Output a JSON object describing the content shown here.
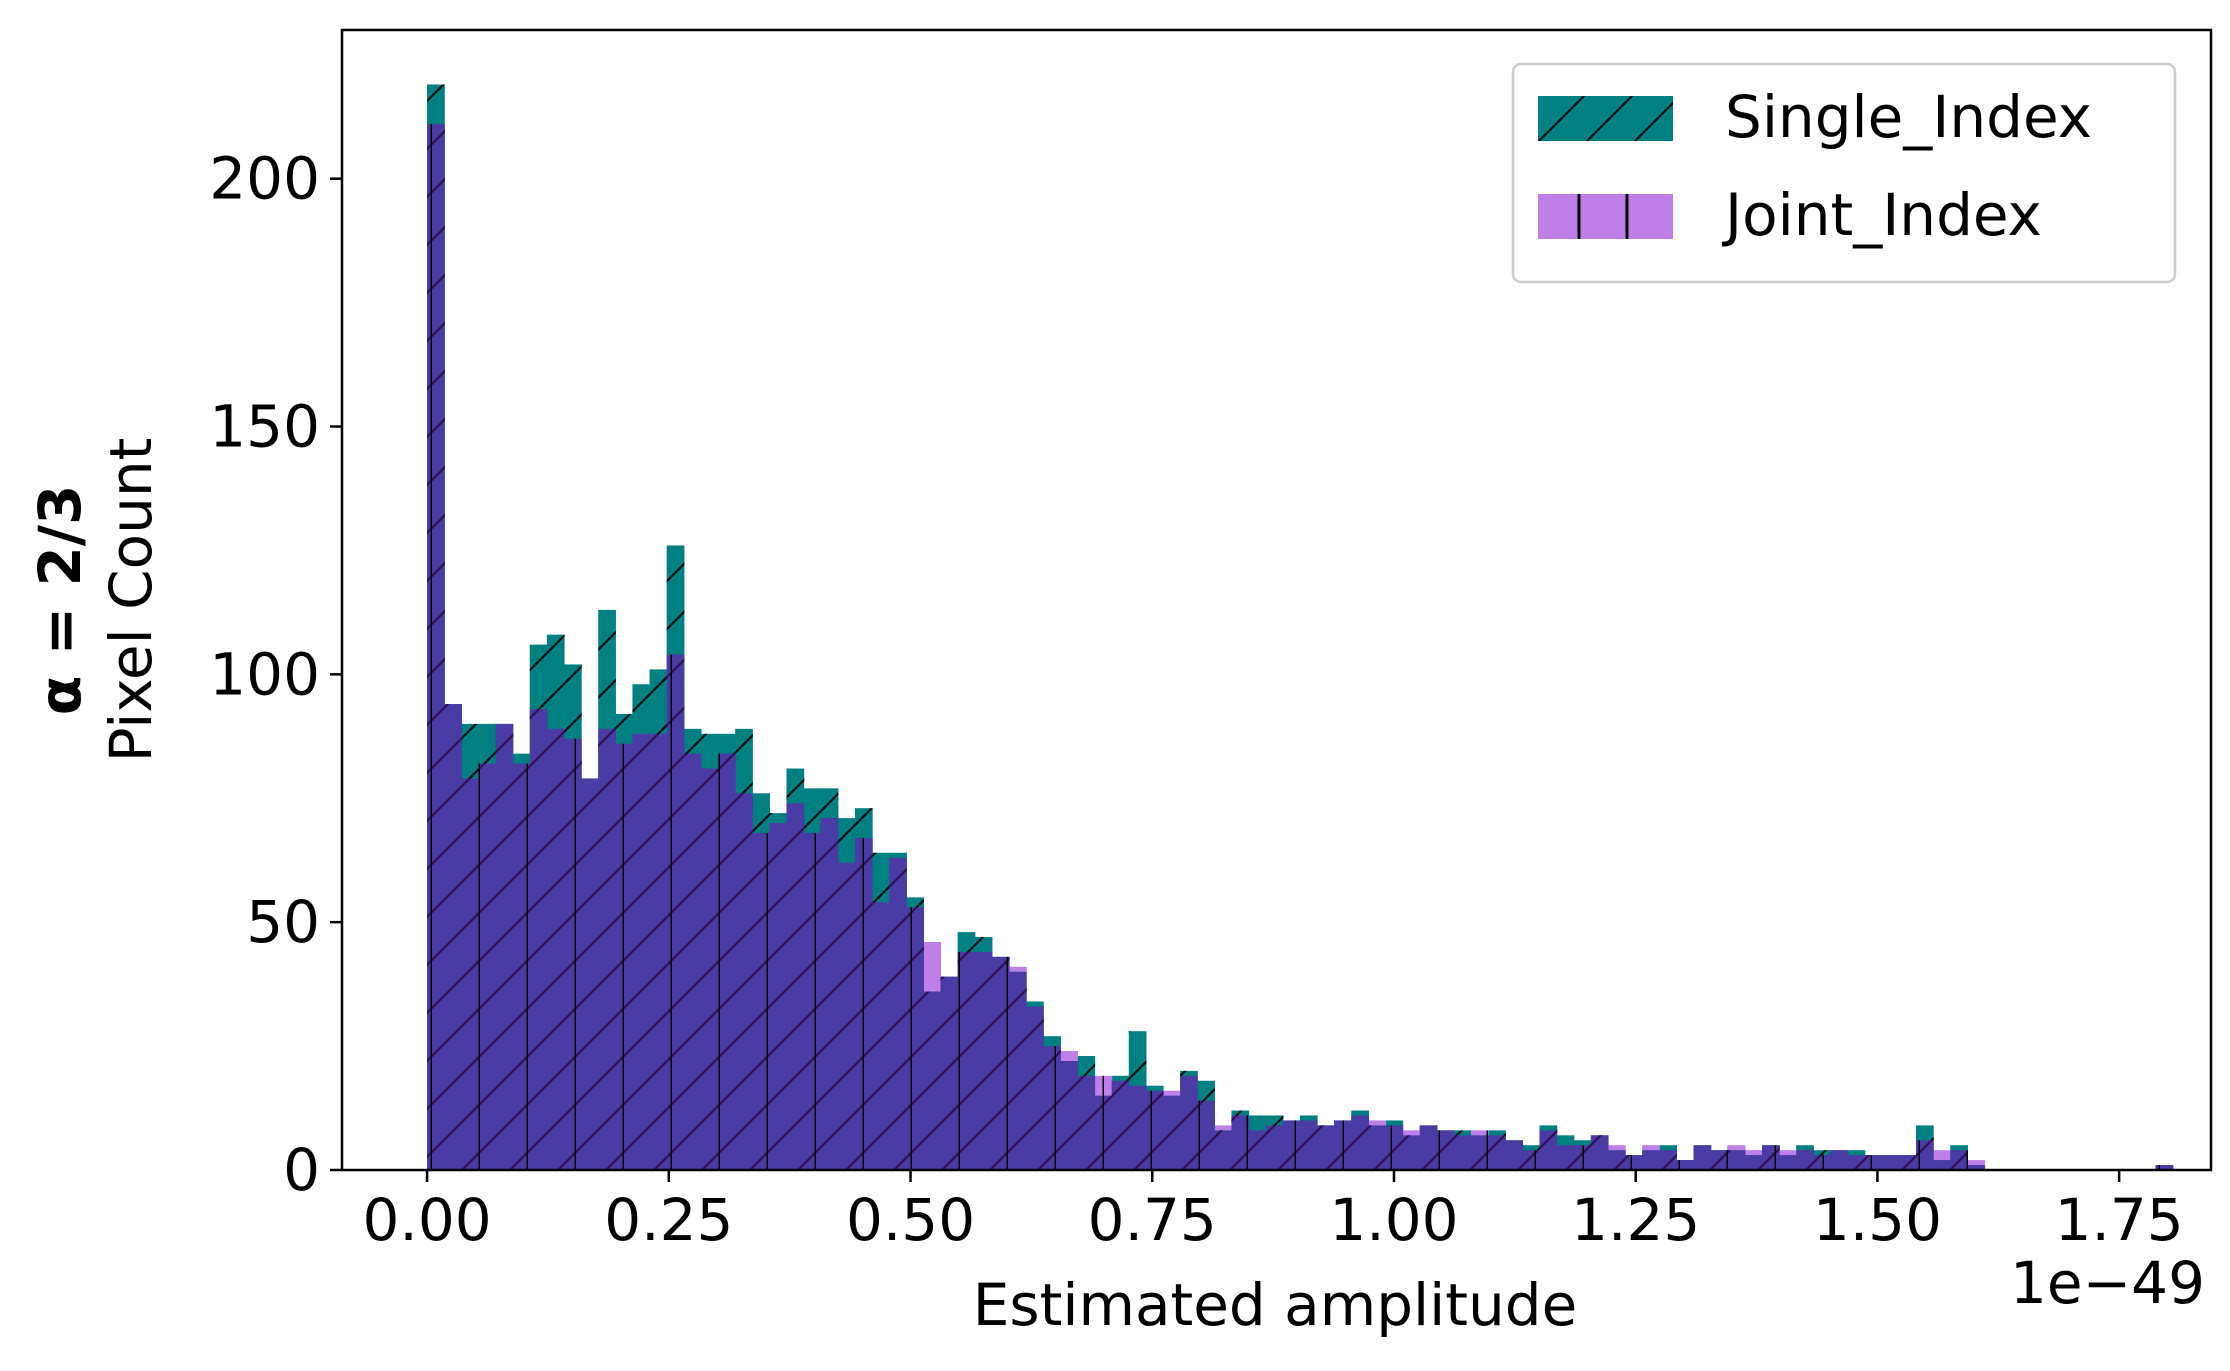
{
  "colors": {
    "single": "#008080",
    "joint": "#4B0082",
    "joint_legend": "#BF7FE8",
    "overlap": "#4B3BA5",
    "axis": "#000000",
    "legend_border": "#cccccc"
  },
  "chart_data": {
    "type": "histogram",
    "ylabel_bold": "α = 2/3",
    "ylabel": "Pixel Count",
    "xlabel": "Estimated amplitude",
    "offset_text": "1e−49",
    "x_scale": 1e-49,
    "xlim": [
      -0.088,
      1.845
    ],
    "ylim": [
      0,
      230
    ],
    "bin_start": 0.0,
    "bin_width": 0.0177,
    "x_ticks": [
      0.0,
      0.25,
      0.5,
      0.75,
      1.0,
      1.25,
      1.5,
      1.75
    ],
    "x_tick_labels": [
      "0.00",
      "0.25",
      "0.50",
      "0.75",
      "1.00",
      "1.25",
      "1.50",
      "1.75"
    ],
    "y_ticks": [
      0,
      50,
      100,
      150,
      200
    ],
    "y_tick_labels": [
      "0",
      "50",
      "100",
      "150",
      "200"
    ],
    "grid": false,
    "legend_position": "top-right",
    "series": [
      {
        "name": "Single_Index",
        "hatch": "diagonal",
        "values": [
          219,
          94,
          90,
          90,
          90,
          84,
          106,
          108,
          102,
          79,
          113,
          92,
          98,
          101,
          126,
          89,
          88,
          88,
          89,
          76,
          72,
          81,
          77,
          77,
          71,
          73,
          64,
          64,
          55,
          36,
          39,
          48,
          47,
          43,
          40,
          34,
          27,
          22,
          23,
          15,
          19,
          28,
          17,
          15,
          20,
          18,
          8,
          12,
          11,
          11,
          10,
          11,
          9,
          10,
          12,
          9,
          10,
          7,
          9,
          8,
          8,
          7,
          8,
          6,
          5,
          9,
          7,
          6,
          7,
          4,
          3,
          4,
          5,
          2,
          5,
          4,
          4,
          3,
          5,
          3,
          5,
          4,
          4,
          4,
          3,
          3,
          3,
          9,
          2,
          5,
          1,
          0,
          0,
          0,
          0,
          0,
          0,
          0,
          0,
          0,
          0,
          1
        ]
      },
      {
        "name": "Joint_Index",
        "hatch": "vertical",
        "values": [
          211,
          94,
          79,
          82,
          90,
          82,
          93,
          89,
          87,
          79,
          89,
          86,
          88,
          88,
          104,
          84,
          81,
          84,
          76,
          68,
          70,
          74,
          68,
          71,
          62,
          67,
          54,
          63,
          53,
          46,
          39,
          44,
          44,
          43,
          41,
          33,
          25,
          24,
          19,
          19,
          18,
          17,
          16,
          16,
          19,
          14,
          9,
          11,
          8,
          9,
          10,
          10,
          9,
          10,
          11,
          10,
          9,
          8,
          9,
          8,
          7,
          8,
          7,
          6,
          4,
          8,
          5,
          5,
          7,
          5,
          3,
          5,
          4,
          2,
          5,
          4,
          5,
          4,
          5,
          4,
          4,
          3,
          4,
          3,
          3,
          3,
          3,
          6,
          4,
          4,
          2,
          0,
          0,
          0,
          0,
          0,
          0,
          0,
          0,
          0,
          0,
          1
        ]
      }
    ]
  }
}
